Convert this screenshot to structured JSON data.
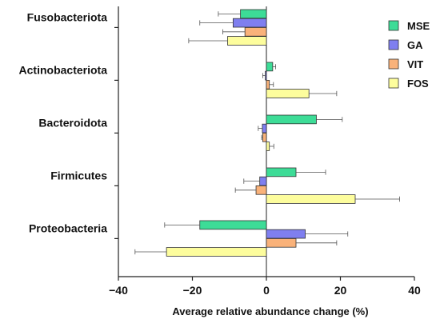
{
  "chart_data": {
    "type": "bar",
    "orientation": "horizontal",
    "title": "",
    "xlabel": "Average relative abundance change (%)",
    "ylabel": "",
    "xlim": [
      -40,
      40
    ],
    "xticks": [
      -40,
      -20,
      0,
      20,
      40
    ],
    "xtick_labels": [
      "−40",
      "−20",
      "0",
      "20",
      "40"
    ],
    "categories": [
      "Fusobacteriota",
      "Actinobacteriota",
      "Bacteroidota",
      "Firmicutes",
      "Proteobacteria"
    ],
    "legend_position": "top-right",
    "grid": false,
    "error_bars": "one-sided",
    "series": [
      {
        "name": "MSE",
        "color": "#3ddc97",
        "values": [
          -7,
          1.7,
          13.5,
          8,
          -18
        ],
        "errors": [
          6,
          0.8,
          7,
          8,
          9.5
        ]
      },
      {
        "name": "GA",
        "color": "#7f7ff0",
        "values": [
          -9,
          -0.3,
          -1.1,
          -1.8,
          10.5
        ],
        "errors": [
          9,
          0.7,
          1.1,
          4.3,
          11.5
        ]
      },
      {
        "name": "VIT",
        "color": "#f9b27a",
        "values": [
          -5.8,
          0.8,
          -1,
          -2.8,
          8
        ],
        "errors": [
          6,
          1.1,
          0.3,
          5.6,
          11
        ]
      },
      {
        "name": "FOS",
        "color": "#fdfd9d",
        "values": [
          -10.5,
          11.5,
          0.8,
          24,
          -27
        ],
        "errors": [
          10.5,
          7.5,
          1.2,
          12,
          8.5
        ]
      }
    ]
  }
}
